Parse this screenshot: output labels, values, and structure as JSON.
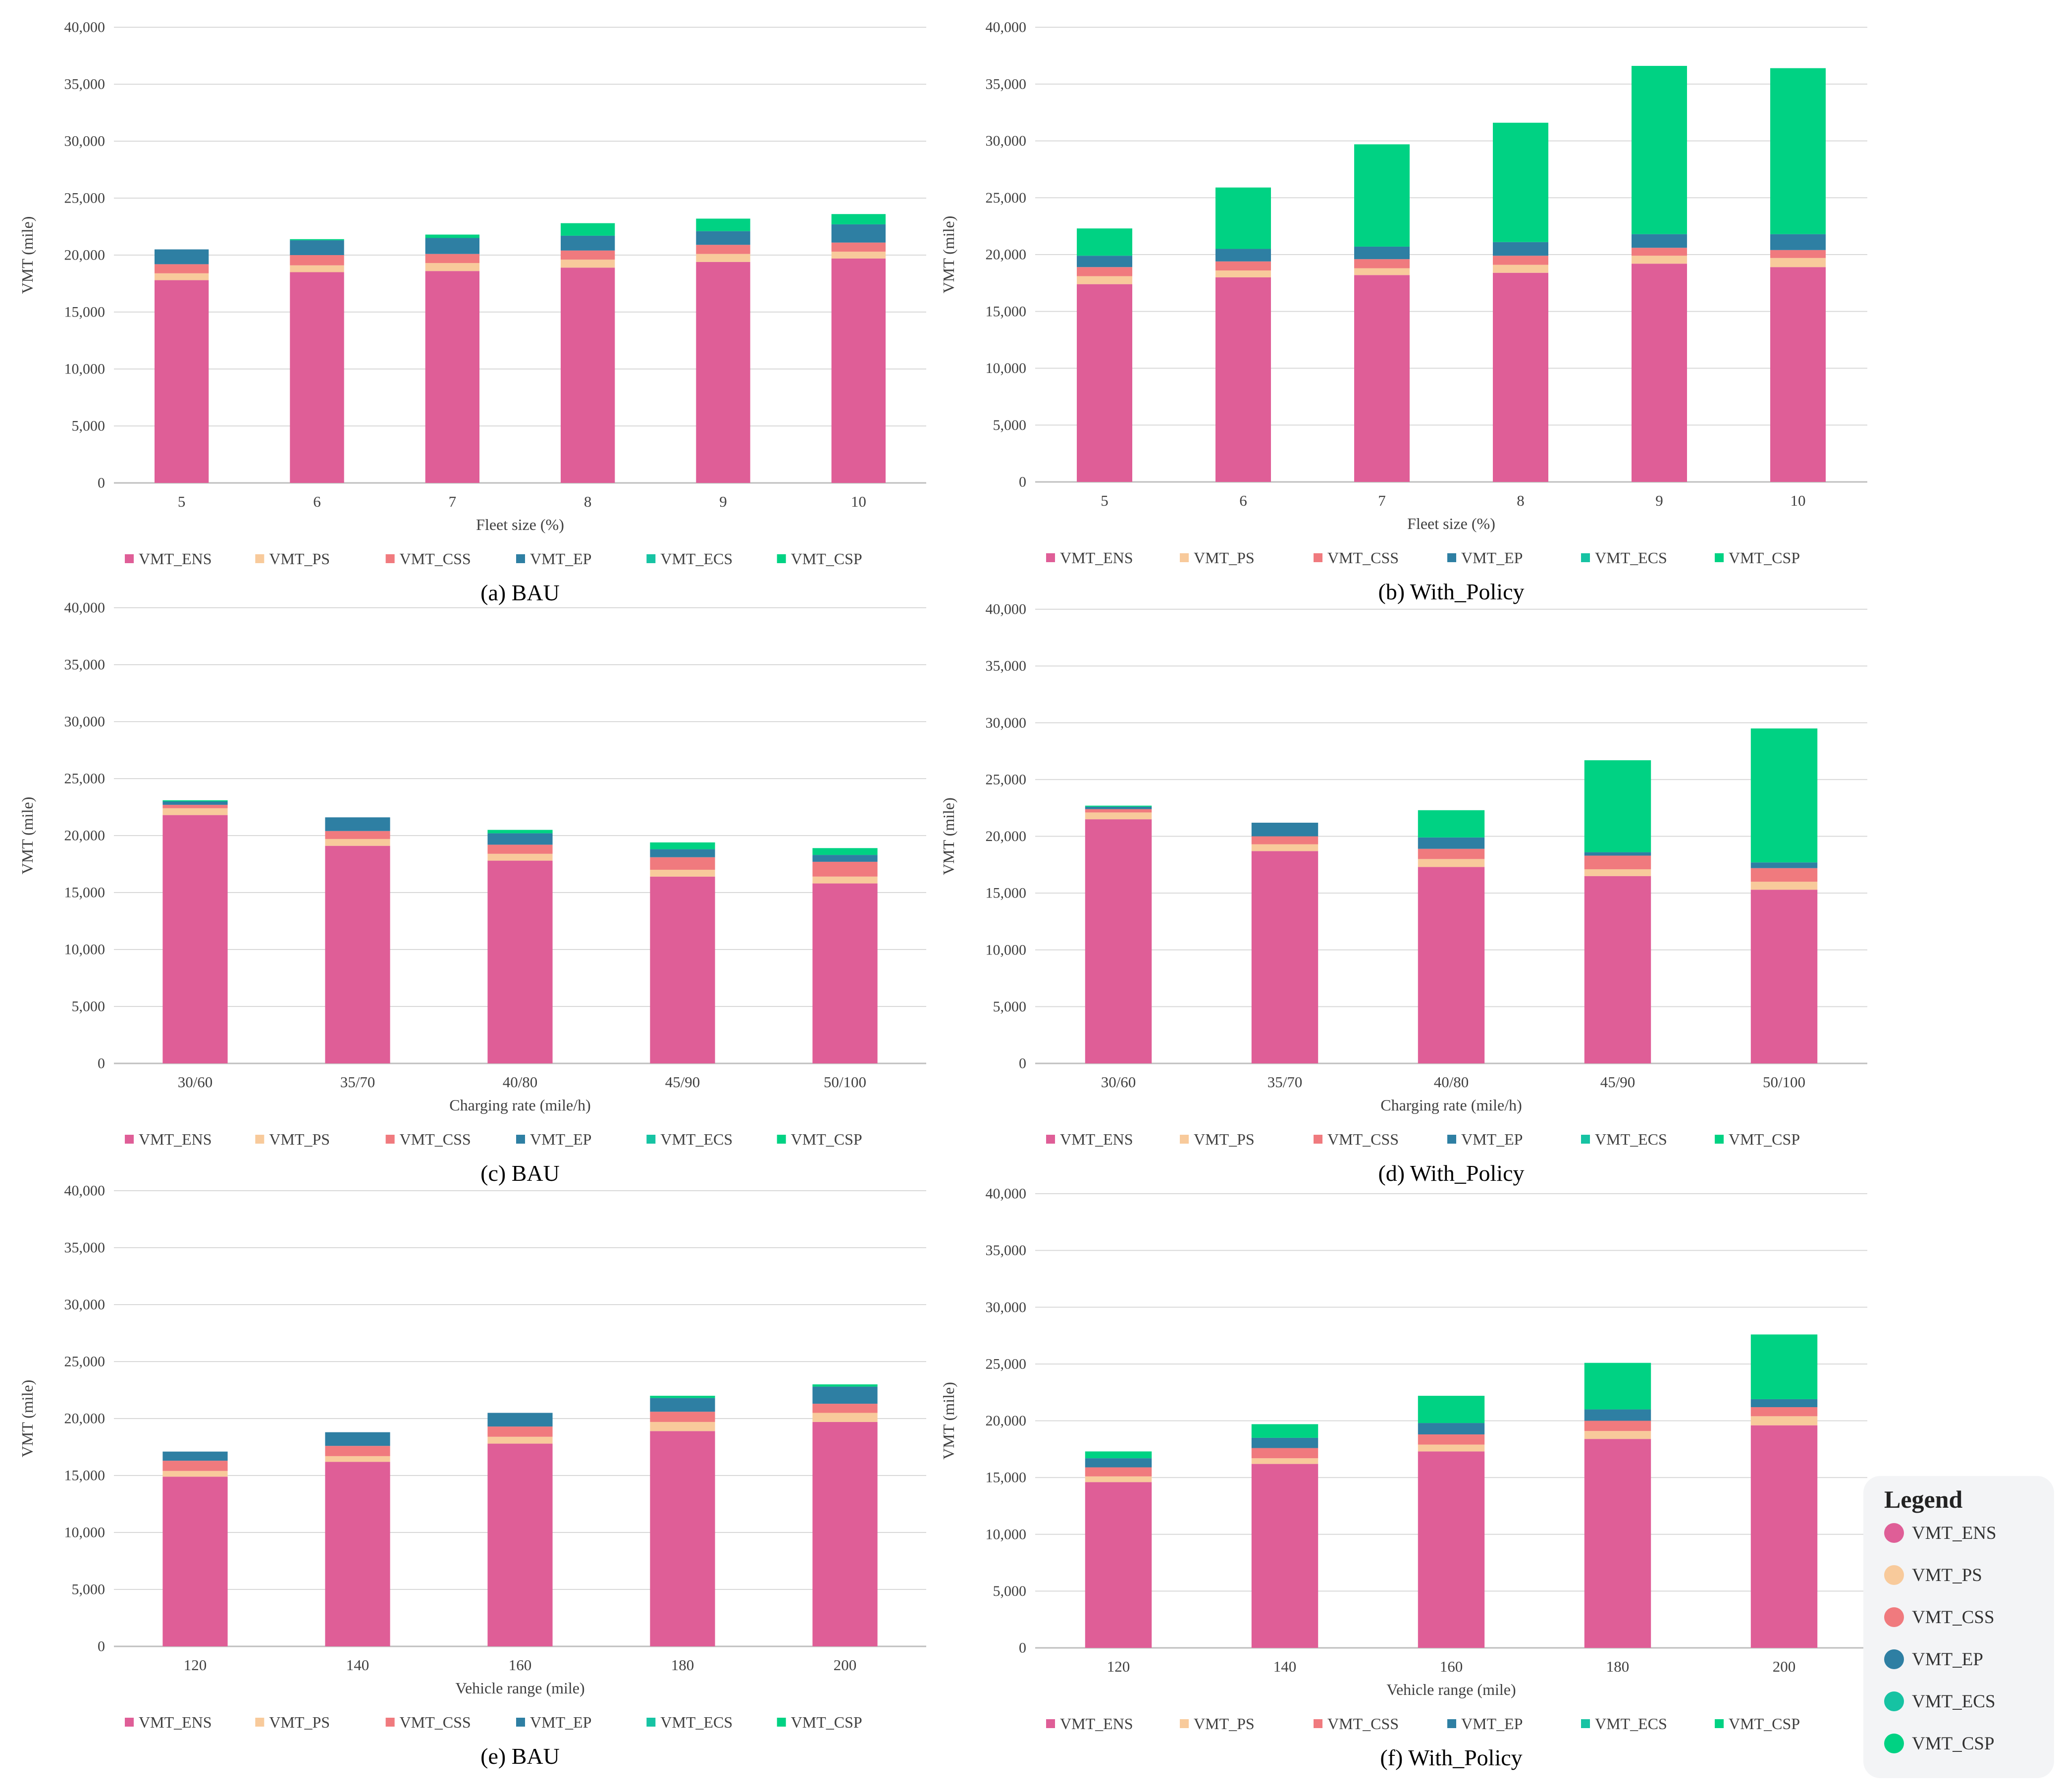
{
  "series_colors": {
    "VMT_ENS": "#df5e97",
    "VMT_PS": "#f8ca9b",
    "VMT_CSS": "#f07a7e",
    "VMT_EP": "#2e7fa3",
    "VMT_ECS": "#16c3a3",
    "VMT_CSP": "#00d283"
  },
  "legend": {
    "title": "Legend",
    "items": [
      "VMT_ENS",
      "VMT_PS",
      "VMT_CSS",
      "VMT_EP",
      "VMT_ECS",
      "VMT_CSP"
    ]
  },
  "chart_data": [
    {
      "type": "bar",
      "stacked": true,
      "caption": "(a) BAU",
      "xlabel": "Fleet size (%)",
      "ylabel": "VMT (mile)",
      "ylim": [
        0,
        40000
      ],
      "yticks": [
        "0",
        "5,000",
        "10,000",
        "15,000",
        "20,000",
        "25,000",
        "30,000",
        "35,000",
        "40,000"
      ],
      "categories": [
        "5",
        "6",
        "7",
        "8",
        "9",
        "10"
      ],
      "series": [
        {
          "name": "VMT_ENS",
          "values": [
            17800,
            18500,
            18600,
            18900,
            19400,
            19700
          ]
        },
        {
          "name": "VMT_PS",
          "values": [
            600,
            600,
            700,
            700,
            700,
            600
          ]
        },
        {
          "name": "VMT_CSS",
          "values": [
            800,
            900,
            800,
            800,
            800,
            800
          ]
        },
        {
          "name": "VMT_EP",
          "values": [
            1300,
            1300,
            1400,
            1300,
            1200,
            1600
          ]
        },
        {
          "name": "VMT_ECS",
          "values": [
            0,
            0,
            0,
            0,
            0,
            0
          ]
        },
        {
          "name": "VMT_CSP",
          "values": [
            0,
            100,
            300,
            1100,
            1100,
            900
          ]
        }
      ]
    },
    {
      "type": "bar",
      "stacked": true,
      "caption": "(b) With_Policy",
      "xlabel": "Fleet size (%)",
      "ylabel": "VMT (mile)",
      "ylim": [
        0,
        40000
      ],
      "yticks": [
        "0",
        "5,000",
        "10,000",
        "15,000",
        "20,000",
        "25,000",
        "30,000",
        "35,000",
        "40,000"
      ],
      "categories": [
        "5",
        "6",
        "7",
        "8",
        "9",
        "10"
      ],
      "series": [
        {
          "name": "VMT_ENS",
          "values": [
            17400,
            18000,
            18200,
            18400,
            19200,
            18900
          ]
        },
        {
          "name": "VMT_PS",
          "values": [
            700,
            600,
            600,
            700,
            700,
            800
          ]
        },
        {
          "name": "VMT_CSS",
          "values": [
            800,
            800,
            800,
            800,
            700,
            700
          ]
        },
        {
          "name": "VMT_EP",
          "values": [
            1000,
            1100,
            1100,
            1200,
            1200,
            1400
          ]
        },
        {
          "name": "VMT_ECS",
          "values": [
            0,
            0,
            0,
            0,
            0,
            0
          ]
        },
        {
          "name": "VMT_CSP",
          "values": [
            2400,
            5400,
            9000,
            10500,
            14800,
            14600
          ]
        }
      ]
    },
    {
      "type": "bar",
      "stacked": true,
      "caption": "(c) BAU",
      "xlabel": "Charging rate (mile/h)",
      "ylabel": "VMT (mile)",
      "ylim": [
        0,
        40000
      ],
      "yticks": [
        "0",
        "5,000",
        "10,000",
        "15,000",
        "20,000",
        "25,000",
        "30,000",
        "35,000",
        "40,000"
      ],
      "categories": [
        "30/60",
        "35/70",
        "40/80",
        "45/90",
        "50/100"
      ],
      "series": [
        {
          "name": "VMT_ENS",
          "values": [
            21800,
            19100,
            17800,
            16400,
            15800
          ]
        },
        {
          "name": "VMT_PS",
          "values": [
            600,
            600,
            600,
            600,
            600
          ]
        },
        {
          "name": "VMT_CSS",
          "values": [
            300,
            700,
            800,
            1100,
            1300
          ]
        },
        {
          "name": "VMT_EP",
          "values": [
            300,
            1200,
            1000,
            700,
            600
          ]
        },
        {
          "name": "VMT_ECS",
          "values": [
            0,
            0,
            0,
            0,
            0
          ]
        },
        {
          "name": "VMT_CSP",
          "values": [
            100,
            0,
            300,
            600,
            600
          ]
        }
      ]
    },
    {
      "type": "bar",
      "stacked": true,
      "caption": "(d) With_Policy",
      "xlabel": "Charging rate (mile/h)",
      "ylabel": "VMT (mile)",
      "ylim": [
        0,
        40000
      ],
      "yticks": [
        "0",
        "5,000",
        "10,000",
        "15,000",
        "20,000",
        "25,000",
        "30,000",
        "35,000",
        "40,000"
      ],
      "categories": [
        "30/60",
        "35/70",
        "40/80",
        "45/90",
        "50/100"
      ],
      "series": [
        {
          "name": "VMT_ENS",
          "values": [
            21500,
            18700,
            17300,
            16500,
            15300
          ]
        },
        {
          "name": "VMT_PS",
          "values": [
            600,
            600,
            700,
            600,
            700
          ]
        },
        {
          "name": "VMT_CSS",
          "values": [
            300,
            700,
            900,
            1200,
            1200
          ]
        },
        {
          "name": "VMT_EP",
          "values": [
            200,
            1200,
            1000,
            300,
            500
          ]
        },
        {
          "name": "VMT_ECS",
          "values": [
            0,
            0,
            0,
            0,
            0
          ]
        },
        {
          "name": "VMT_CSP",
          "values": [
            100,
            0,
            2400,
            8100,
            11800
          ]
        }
      ]
    },
    {
      "type": "bar",
      "stacked": true,
      "caption": "(e) BAU",
      "xlabel": "Vehicle range (mile)",
      "ylabel": "VMT (mile)",
      "ylim": [
        0,
        40000
      ],
      "yticks": [
        "0",
        "5,000",
        "10,000",
        "15,000",
        "20,000",
        "25,000",
        "30,000",
        "35,000",
        "40,000"
      ],
      "categories": [
        "120",
        "140",
        "160",
        "180",
        "200"
      ],
      "series": [
        {
          "name": "VMT_ENS",
          "values": [
            14900,
            16200,
            17800,
            18900,
            19700
          ]
        },
        {
          "name": "VMT_PS",
          "values": [
            500,
            500,
            600,
            800,
            800
          ]
        },
        {
          "name": "VMT_CSS",
          "values": [
            900,
            900,
            900,
            900,
            800
          ]
        },
        {
          "name": "VMT_EP",
          "values": [
            800,
            1200,
            1200,
            1200,
            1500
          ]
        },
        {
          "name": "VMT_ECS",
          "values": [
            0,
            0,
            0,
            0,
            0
          ]
        },
        {
          "name": "VMT_CSP",
          "values": [
            0,
            0,
            0,
            200,
            200
          ]
        }
      ]
    },
    {
      "type": "bar",
      "stacked": true,
      "caption": "(f) With_Policy",
      "xlabel": "Vehicle range (mile)",
      "ylabel": "VMT (mile)",
      "ylim": [
        0,
        40000
      ],
      "yticks": [
        "0",
        "5,000",
        "10,000",
        "15,000",
        "20,000",
        "25,000",
        "30,000",
        "35,000",
        "40,000"
      ],
      "categories": [
        "120",
        "140",
        "160",
        "180",
        "200"
      ],
      "series": [
        {
          "name": "VMT_ENS",
          "values": [
            14600,
            16200,
            17300,
            18400,
            19600
          ]
        },
        {
          "name": "VMT_PS",
          "values": [
            500,
            500,
            600,
            700,
            800
          ]
        },
        {
          "name": "VMT_CSS",
          "values": [
            800,
            900,
            900,
            900,
            800
          ]
        },
        {
          "name": "VMT_EP",
          "values": [
            800,
            900,
            1000,
            1000,
            700
          ]
        },
        {
          "name": "VMT_ECS",
          "values": [
            0,
            0,
            0,
            0,
            0
          ]
        },
        {
          "name": "VMT_CSP",
          "values": [
            600,
            1200,
            2400,
            4100,
            5700
          ]
        }
      ]
    }
  ]
}
